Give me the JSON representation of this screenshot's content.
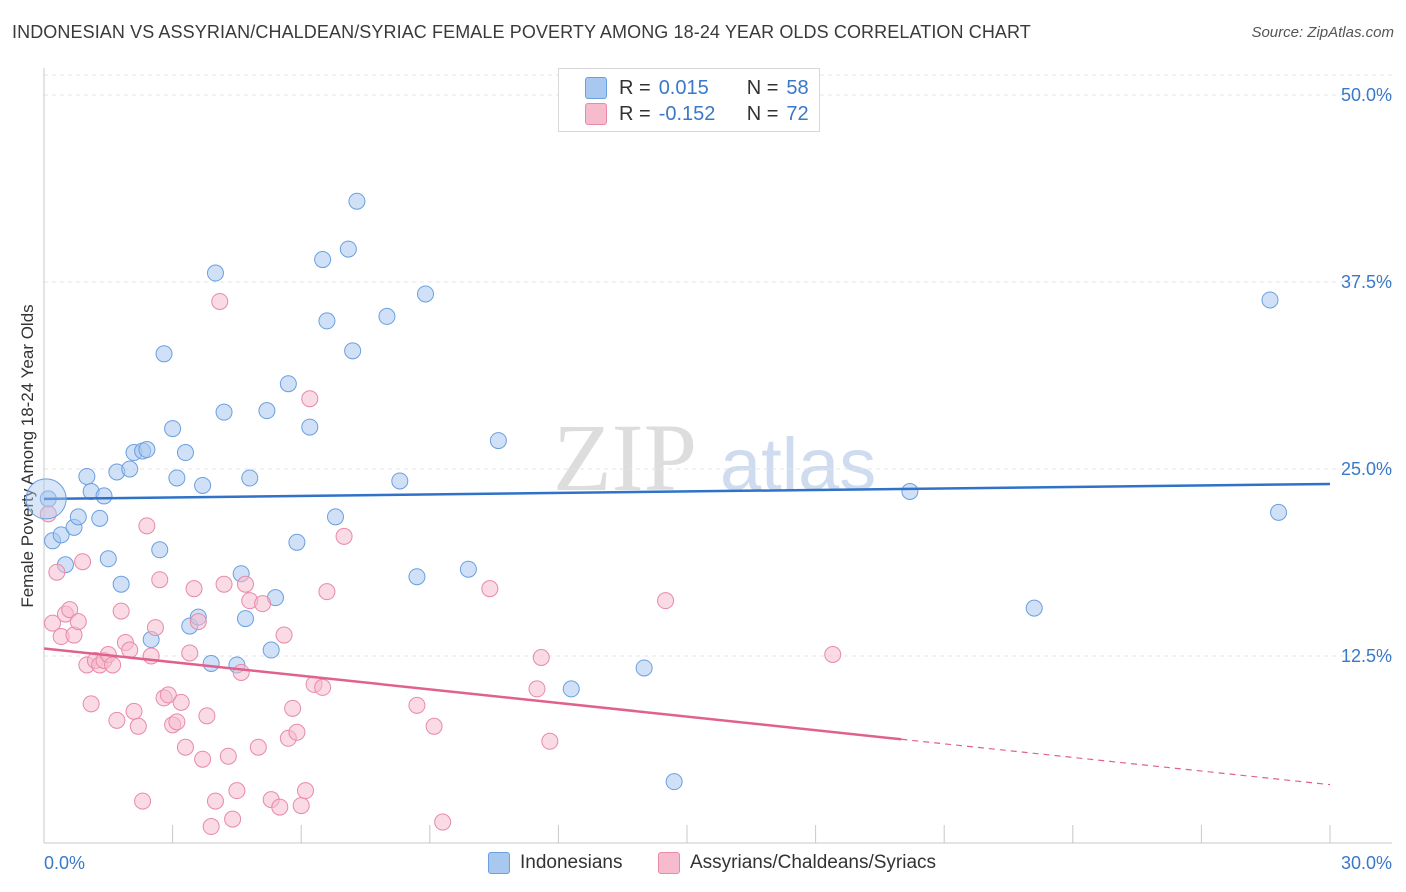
{
  "title": "INDONESIAN VS ASSYRIAN/CHALDEAN/SYRIAC FEMALE POVERTY AMONG 18-24 YEAR OLDS CORRELATION CHART",
  "source": "Source: ZipAtlas.com",
  "watermark": {
    "zip": "ZIP",
    "atlas": "atlas"
  },
  "legend": {
    "rows": [
      {
        "r_label": "R =",
        "r_value": "0.015",
        "n_label": "N =",
        "n_value": "58",
        "color": "#a9c8f0",
        "border": "#6a9fe0"
      },
      {
        "r_label": "R =",
        "r_value": "-0.152",
        "n_label": "N =",
        "n_value": "72",
        "color": "#f6bccd",
        "border": "#e88aa8"
      }
    ]
  },
  "bottom_legend": [
    {
      "label": "Indonesians",
      "color": "#a9c8f0",
      "border": "#6a9fe0"
    },
    {
      "label": "Assyrians/Chaldeans/Syriacs",
      "color": "#f6bccd",
      "border": "#e88aa8"
    }
  ],
  "chart_data": {
    "type": "scatter",
    "title": "INDONESIAN VS ASSYRIAN/CHALDEAN/SYRIAC FEMALE POVERTY AMONG 18-24 YEAR OLDS CORRELATION CHART",
    "ylabel": "Female Poverty Among 18-24 Year Olds",
    "xlabel": "",
    "x_unit": "%",
    "xlim": [
      0,
      30
    ],
    "ylim": [
      0,
      50
    ],
    "x_tick_labels": [
      "0.0%",
      "30.0%"
    ],
    "y_ticks": [
      12.5,
      25.0,
      37.5,
      50.0
    ],
    "y_tick_labels": [
      "12.5%",
      "25.0%",
      "37.5%",
      "50.0%"
    ],
    "grid": true,
    "legend_position": "top-center",
    "series": [
      {
        "name": "Indonesians",
        "color": "#6a9fe0",
        "fill": "#a9c8f0",
        "line_color": "#2f72c8",
        "trend": {
          "x": [
            0,
            30
          ],
          "y": [
            23.0,
            24.0
          ],
          "solid_until": 30
        },
        "points": [
          [
            0.1,
            23.0
          ],
          [
            0.2,
            20.2
          ],
          [
            0.4,
            20.6
          ],
          [
            0.5,
            18.6
          ],
          [
            0.7,
            21.1
          ],
          [
            0.8,
            21.8
          ],
          [
            1.0,
            24.5
          ],
          [
            1.1,
            23.5
          ],
          [
            1.3,
            21.7
          ],
          [
            1.4,
            23.2
          ],
          [
            1.5,
            19.0
          ],
          [
            1.7,
            24.8
          ],
          [
            1.8,
            17.3
          ],
          [
            2.0,
            25.0
          ],
          [
            2.1,
            26.1
          ],
          [
            2.3,
            26.2
          ],
          [
            2.4,
            26.3
          ],
          [
            2.5,
            13.6
          ],
          [
            2.7,
            19.6
          ],
          [
            2.8,
            32.7
          ],
          [
            3.0,
            27.7
          ],
          [
            3.1,
            24.4
          ],
          [
            3.3,
            26.1
          ],
          [
            3.4,
            14.5
          ],
          [
            3.6,
            15.1
          ],
          [
            3.7,
            23.9
          ],
          [
            3.9,
            12.0
          ],
          [
            4.0,
            38.1
          ],
          [
            4.2,
            28.8
          ],
          [
            4.5,
            11.9
          ],
          [
            4.6,
            18.0
          ],
          [
            4.7,
            15.0
          ],
          [
            4.8,
            24.4
          ],
          [
            5.2,
            28.9
          ],
          [
            5.3,
            12.9
          ],
          [
            5.4,
            16.4
          ],
          [
            5.7,
            30.7
          ],
          [
            5.9,
            20.1
          ],
          [
            6.2,
            27.8
          ],
          [
            6.5,
            39.0
          ],
          [
            6.6,
            34.9
          ],
          [
            6.8,
            21.8
          ],
          [
            7.1,
            39.7
          ],
          [
            7.2,
            32.9
          ],
          [
            7.3,
            42.9
          ],
          [
            8.0,
            35.2
          ],
          [
            8.3,
            24.2
          ],
          [
            8.7,
            17.8
          ],
          [
            8.9,
            36.7
          ],
          [
            9.9,
            18.3
          ],
          [
            10.6,
            26.9
          ],
          [
            12.3,
            10.3
          ],
          [
            14.0,
            11.7
          ],
          [
            14.7,
            4.1
          ],
          [
            20.2,
            23.5
          ],
          [
            23.1,
            15.7
          ],
          [
            28.6,
            36.3
          ],
          [
            28.8,
            22.1
          ]
        ]
      },
      {
        "name": "Assyrians/Chaldeans/Syriacs",
        "color": "#e88aa8",
        "fill": "#f6bccd",
        "line_color": "#e0628c",
        "trend": {
          "x": [
            0,
            30
          ],
          "y": [
            13.0,
            3.9
          ],
          "solid_until": 20.0
        },
        "points": [
          [
            0.1,
            22.0
          ],
          [
            0.2,
            14.7
          ],
          [
            0.3,
            18.1
          ],
          [
            0.4,
            13.8
          ],
          [
            0.5,
            15.3
          ],
          [
            0.6,
            15.6
          ],
          [
            0.7,
            13.9
          ],
          [
            0.8,
            14.8
          ],
          [
            0.9,
            18.8
          ],
          [
            1.0,
            11.9
          ],
          [
            1.1,
            9.3
          ],
          [
            1.2,
            12.2
          ],
          [
            1.3,
            11.9
          ],
          [
            1.4,
            12.2
          ],
          [
            1.5,
            12.6
          ],
          [
            1.6,
            11.9
          ],
          [
            1.7,
            8.2
          ],
          [
            1.8,
            15.5
          ],
          [
            1.9,
            13.4
          ],
          [
            2.0,
            12.9
          ],
          [
            2.1,
            8.8
          ],
          [
            2.2,
            7.8
          ],
          [
            2.3,
            2.8
          ],
          [
            2.4,
            21.2
          ],
          [
            2.5,
            12.5
          ],
          [
            2.6,
            14.4
          ],
          [
            2.7,
            17.6
          ],
          [
            2.8,
            9.7
          ],
          [
            2.9,
            9.9
          ],
          [
            3.0,
            7.9
          ],
          [
            3.1,
            8.1
          ],
          [
            3.2,
            9.4
          ],
          [
            3.3,
            6.4
          ],
          [
            3.4,
            12.7
          ],
          [
            3.5,
            17.0
          ],
          [
            3.6,
            14.8
          ],
          [
            3.7,
            5.6
          ],
          [
            3.8,
            8.5
          ],
          [
            3.9,
            1.1
          ],
          [
            4.0,
            2.8
          ],
          [
            4.1,
            36.2
          ],
          [
            4.2,
            17.3
          ],
          [
            4.3,
            5.8
          ],
          [
            4.4,
            1.6
          ],
          [
            4.5,
            3.5
          ],
          [
            4.6,
            11.4
          ],
          [
            4.7,
            17.3
          ],
          [
            4.8,
            16.2
          ],
          [
            5.0,
            6.4
          ],
          [
            5.1,
            16.0
          ],
          [
            5.3,
            2.9
          ],
          [
            5.5,
            2.4
          ],
          [
            5.6,
            13.9
          ],
          [
            5.7,
            7.0
          ],
          [
            5.8,
            9.0
          ],
          [
            5.9,
            7.4
          ],
          [
            6.0,
            2.5
          ],
          [
            6.1,
            3.5
          ],
          [
            6.2,
            29.7
          ],
          [
            6.3,
            10.6
          ],
          [
            6.5,
            10.4
          ],
          [
            6.6,
            16.8
          ],
          [
            7.0,
            20.5
          ],
          [
            8.7,
            9.2
          ],
          [
            9.1,
            7.8
          ],
          [
            9.3,
            1.4
          ],
          [
            10.4,
            17.0
          ],
          [
            11.5,
            10.3
          ],
          [
            11.6,
            12.4
          ],
          [
            11.8,
            6.8
          ],
          [
            14.5,
            16.2
          ],
          [
            18.4,
            12.6
          ]
        ]
      }
    ]
  }
}
